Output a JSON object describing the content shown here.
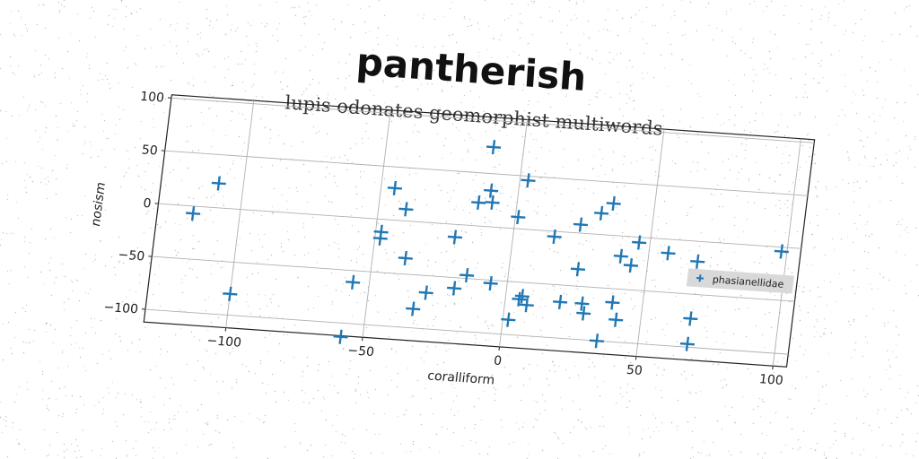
{
  "chart_data": {
    "type": "scatter",
    "title": "pantherish",
    "subtitle": "lupis odonates geomorphist multiwords",
    "xlabel": "coralliform",
    "ylabel": "nosism",
    "xlim": [
      -130,
      105
    ],
    "ylim": [
      -112,
      103
    ],
    "xticks": [
      -100,
      -50,
      0,
      50,
      100
    ],
    "yticks": [
      100,
      50,
      0,
      -50,
      -100
    ],
    "xtick_labels": [
      "−100",
      "−50",
      "0",
      "50",
      "100"
    ],
    "ytick_labels": [
      "100",
      "50",
      "0",
      "−50",
      "−100"
    ],
    "grid": true,
    "legend_position": "right",
    "series": [
      {
        "name": "phasianellidae",
        "color": "#1f77b4",
        "marker": "plus",
        "points": [
          [
            -117,
            -7
          ],
          [
            -109,
            23
          ],
          [
            -100,
            -80
          ],
          [
            -58,
            -113
          ],
          [
            -56,
            -61
          ],
          [
            -48,
            -12
          ],
          [
            -48,
            -18
          ],
          [
            -45,
            30
          ],
          [
            -40,
            11
          ],
          [
            -38,
            -35
          ],
          [
            -33,
            -82
          ],
          [
            -29,
            -66
          ],
          [
            -21,
            -12
          ],
          [
            -19,
            -60
          ],
          [
            -15,
            -47
          ],
          [
            -14,
            22
          ],
          [
            -11,
            75
          ],
          [
            -10,
            34
          ],
          [
            -9,
            23
          ],
          [
            -6,
            -53
          ],
          [
            1,
            11
          ],
          [
            2,
            -86
          ],
          [
            3,
            46
          ],
          [
            5,
            -66
          ],
          [
            6,
            -63
          ],
          [
            8,
            -71
          ],
          [
            15,
            -5
          ],
          [
            20,
            -66
          ],
          [
            24,
            8
          ],
          [
            25,
            -34
          ],
          [
            28,
            -66
          ],
          [
            29,
            -75
          ],
          [
            31,
            20
          ],
          [
            35,
            30
          ],
          [
            35,
            -100
          ],
          [
            39,
            -63
          ],
          [
            40,
            -19
          ],
          [
            41,
            -79
          ],
          [
            44,
            -27
          ],
          [
            46,
            -5
          ],
          [
            57,
            -13
          ],
          [
            68,
            -19
          ],
          [
            68,
            -73
          ],
          [
            68,
            -97
          ],
          [
            98,
            -4
          ]
        ]
      }
    ]
  }
}
